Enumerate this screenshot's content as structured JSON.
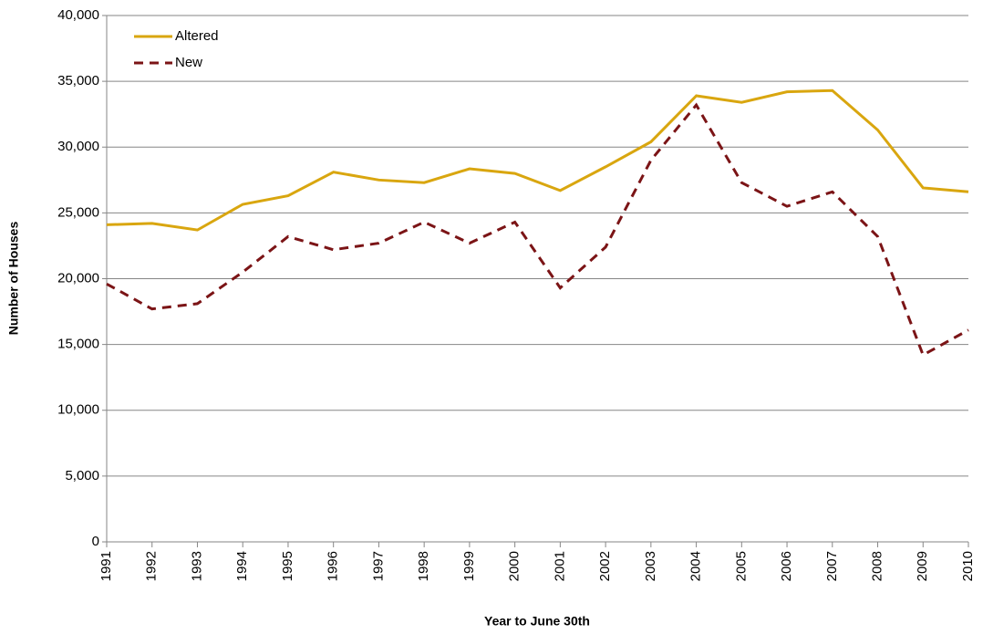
{
  "chart_data": {
    "type": "line",
    "x_label": "Year to June 30th",
    "y_label": "Number of Houses",
    "x": [
      1991,
      1992,
      1993,
      1994,
      1995,
      1996,
      1997,
      1998,
      1999,
      2000,
      2001,
      2002,
      2003,
      2004,
      2005,
      2006,
      2007,
      2008,
      2009,
      2010
    ],
    "xlim": [
      1991,
      2010
    ],
    "xticks": [
      1991,
      1992,
      1993,
      1994,
      1995,
      1996,
      1997,
      1998,
      1999,
      2000,
      2001,
      2002,
      2003,
      2004,
      2005,
      2006,
      2007,
      2008,
      2009,
      2010
    ],
    "ylim": [
      0,
      40000
    ],
    "yticks": [
      0,
      {
        "value": 5000,
        "label": "5,000"
      },
      {
        "value": 10000,
        "label": "10,000"
      },
      {
        "value": 15000,
        "label": "15,000"
      },
      {
        "value": 20000,
        "label": "20,000"
      },
      {
        "value": 25000,
        "label": "25,000"
      },
      {
        "value": 30000,
        "label": "30,000"
      },
      {
        "value": 35000,
        "label": "35,000"
      },
      {
        "value": 40000,
        "label": "40,000"
      }
    ],
    "grid": true,
    "legend": "top-left",
    "series": [
      {
        "name": "Altered",
        "color": "#d9a60f",
        "line_style": "solid",
        "values": [
          24100,
          24200,
          23700,
          25650,
          26300,
          28100,
          27500,
          27300,
          28350,
          28000,
          26700,
          28500,
          30400,
          33900,
          33400,
          34200,
          34300,
          31300,
          26900,
          26600
        ]
      },
      {
        "name": "New",
        "color": "#7b1416",
        "line_style": "dashed",
        "values": [
          19600,
          17700,
          18100,
          20500,
          23200,
          22200,
          22700,
          24300,
          22700,
          24300,
          19300,
          22400,
          29000,
          33200,
          27300,
          25500,
          26600,
          23200,
          14200,
          16100
        ]
      }
    ]
  }
}
